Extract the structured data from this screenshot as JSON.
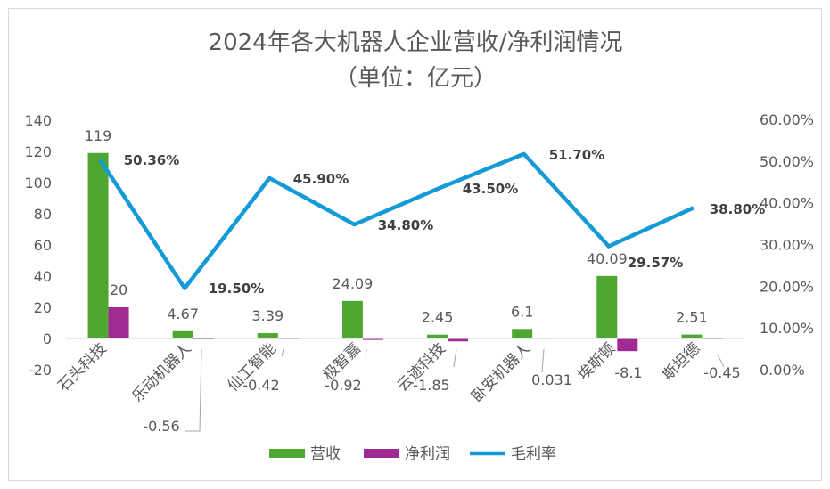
{
  "chart_data": {
    "type": "bar",
    "title": "2024年各大机器人企业营收/净利润情况",
    "subtitle": "（单位：亿元）",
    "categories": [
      "石头科技",
      "乐动机器人",
      "仙工智能",
      "极智嘉",
      "云迹科技",
      "卧安机器人",
      "埃斯顿",
      "斯坦德"
    ],
    "series": [
      {
        "name": "营收",
        "type": "bar",
        "axis": "left",
        "color": "#4ea72e",
        "values": [
          119,
          4.67,
          3.39,
          24.09,
          2.45,
          6.1,
          40.09,
          2.51
        ],
        "labels": [
          "119",
          "4.67",
          "3.39",
          "24.09",
          "2.45",
          "6.1",
          "40.09",
          "2.51"
        ]
      },
      {
        "name": "净利润",
        "type": "bar",
        "axis": "left",
        "color": "#a02b93",
        "values": [
          20,
          -0.56,
          -0.42,
          -0.92,
          -1.85,
          0.031,
          -8.1,
          -0.45
        ],
        "labels": [
          "20",
          "-0.56",
          "-0.42",
          "-0.92",
          "-1.85",
          "0.031",
          "-8.1",
          "-0.45"
        ]
      },
      {
        "name": "毛利率",
        "type": "line",
        "axis": "right",
        "color": "#149ad6",
        "values": [
          50.36,
          19.5,
          45.9,
          34.8,
          43.5,
          51.7,
          29.57,
          38.8
        ],
        "labels": [
          "50.36%",
          "19.50%",
          "45.90%",
          "34.80%",
          "43.50%",
          "51.70%",
          "29.57%",
          "38.80%"
        ]
      }
    ],
    "y_left": {
      "min": -20,
      "max": 140,
      "step": 20,
      "ticks": [
        "-20",
        "0",
        "20",
        "40",
        "60",
        "80",
        "100",
        "120",
        "140"
      ]
    },
    "y_right": {
      "min": 0,
      "max": 60,
      "step": 10,
      "ticks": [
        "0.00%",
        "10.00%",
        "20.00%",
        "30.00%",
        "40.00%",
        "50.00%",
        "60.00%"
      ]
    },
    "legend": {
      "position": "bottom",
      "entries": [
        "营收",
        "净利润",
        "毛利率"
      ]
    },
    "grid": false
  }
}
